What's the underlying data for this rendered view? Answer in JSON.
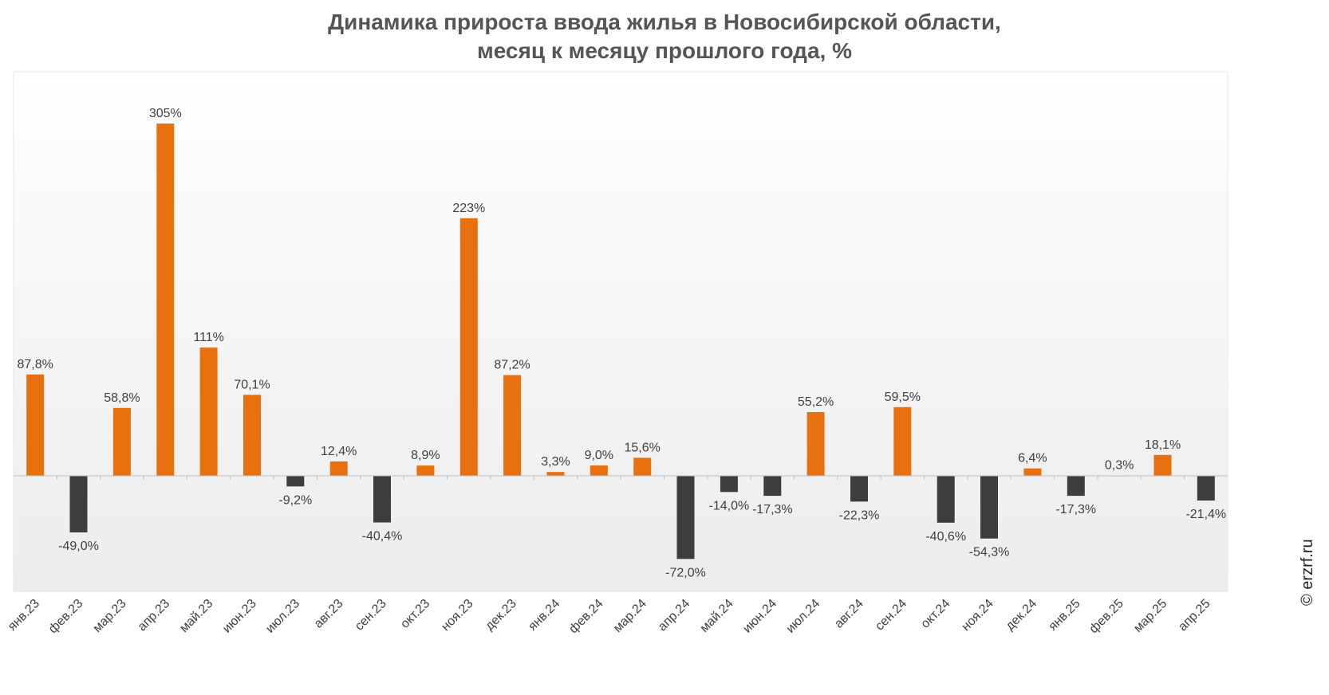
{
  "chart_data": {
    "type": "bar",
    "title_line1": "Динамика прироста ввода жилья в Новосибирской области,",
    "title_line2": "месяц к месяцу прошлого года, %",
    "categories": [
      "янв.23",
      "фев.23",
      "мар.23",
      "апр.23",
      "май.23",
      "июн.23",
      "июл.23",
      "авг.23",
      "сен.23",
      "окт.23",
      "ноя.23",
      "дек.23",
      "янв.24",
      "фев.24",
      "мар.24",
      "апр.24",
      "май.24",
      "июн.24",
      "июл.24",
      "авг.24",
      "сен.24",
      "окт.24",
      "ноя.24",
      "дек.24",
      "янв.25",
      "фев.25",
      "мар.25",
      "апр.25"
    ],
    "values": [
      87.8,
      -49.0,
      58.8,
      305,
      111,
      70.1,
      -9.2,
      12.4,
      -40.4,
      8.9,
      223,
      87.2,
      3.3,
      9.0,
      15.6,
      -72.0,
      -14.0,
      -17.3,
      55.2,
      -22.3,
      59.5,
      -40.6,
      -54.3,
      6.4,
      -17.3,
      0.3,
      18.1,
      -21.4
    ],
    "labels": [
      "87,8%",
      "-49,0%",
      "58,8%",
      "305%",
      "111%",
      "70,1%",
      "-9,2%",
      "12,4%",
      "-40,4%",
      "8,9%",
      "223%",
      "87,2%",
      "3,3%",
      "9,0%",
      "15,6%",
      "-72,0%",
      "-14,0%",
      "-17,3%",
      "55,2%",
      "-22,3%",
      "59,5%",
      "-40,6%",
      "-54,3%",
      "6,4%",
      "-17,3%",
      "0,3%",
      "18,1%",
      "-21,4%"
    ],
    "ylim": [
      -100,
      340
    ],
    "grid": false,
    "legend": "none",
    "colors": {
      "positive": "#E8700F",
      "negative": "#3D3D3D",
      "axis": "#BFBFBF",
      "label": "#404040"
    }
  },
  "watermark": "© erzrf.ru"
}
